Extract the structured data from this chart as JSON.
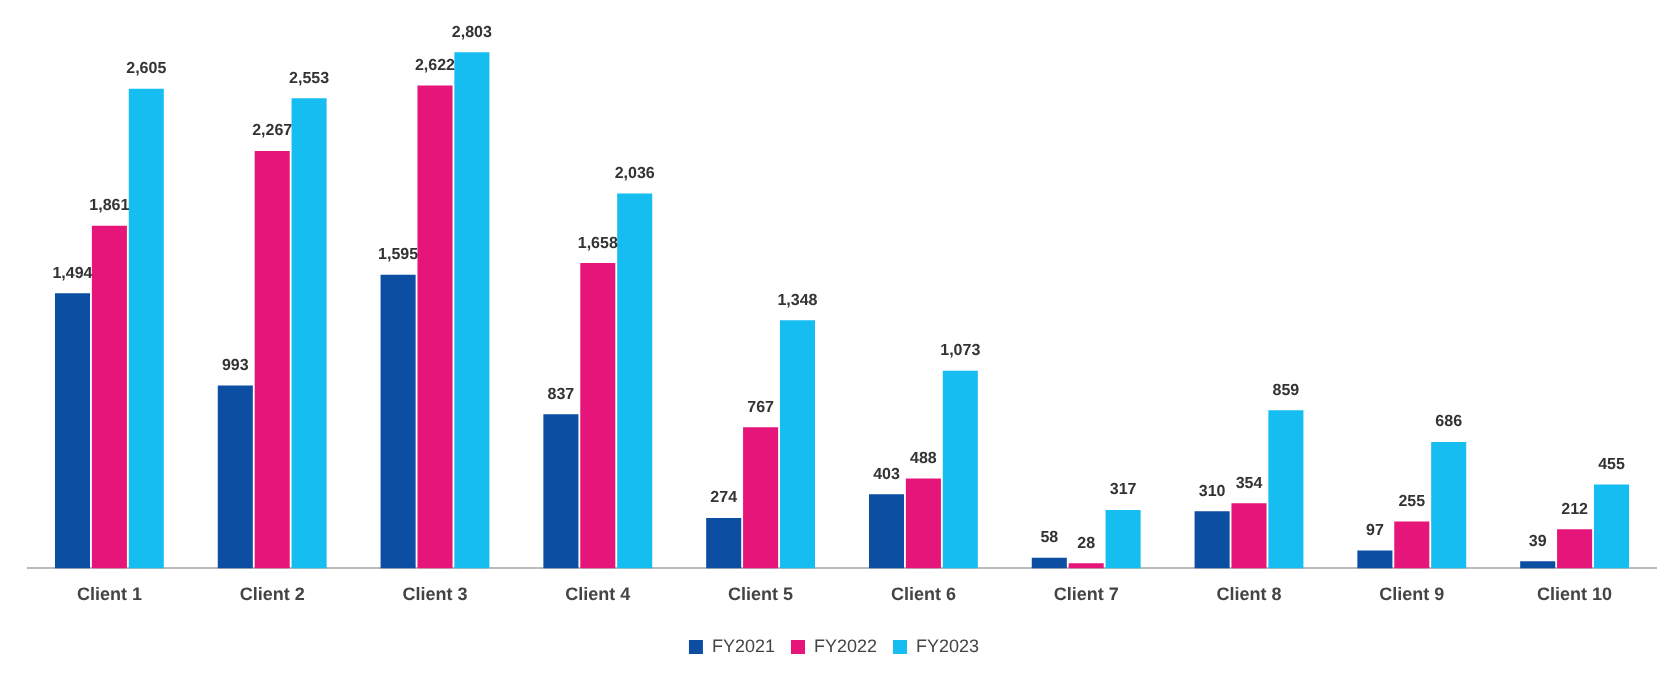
{
  "chart_data": {
    "type": "bar",
    "categories": [
      "Client 1",
      "Client 2",
      "Client 3",
      "Client 4",
      "Client 5",
      "Client 6",
      "Client 7",
      "Client 8",
      "Client 9",
      "Client 10"
    ],
    "series": [
      {
        "name": "FY2021",
        "color": "#0b4ea2",
        "values": [
          1494,
          993,
          1595,
          837,
          274,
          403,
          58,
          310,
          97,
          39
        ],
        "value_labels": [
          "1,494",
          "993",
          "1,595",
          "837",
          "274",
          "403",
          "58",
          "310",
          "97",
          "39"
        ]
      },
      {
        "name": "FY2022",
        "color": "#e6157a",
        "values": [
          1861,
          2267,
          2622,
          1658,
          767,
          488,
          28,
          354,
          255,
          212
        ],
        "value_labels": [
          "1,861",
          "2,267",
          "2,622",
          "1,658",
          "767",
          "488",
          "28",
          "354",
          "255",
          "212"
        ]
      },
      {
        "name": "FY2023",
        "color": "#16bdf0",
        "values": [
          2605,
          2553,
          2803,
          2036,
          1348,
          1073,
          317,
          859,
          686,
          455
        ],
        "value_labels": [
          "2,605",
          "2,553",
          "2,803",
          "2,036",
          "1,348",
          "1,073",
          "317",
          "859",
          "686",
          "455"
        ]
      }
    ],
    "legend": "bottom",
    "grid": false,
    "tick_labels": "x"
  }
}
